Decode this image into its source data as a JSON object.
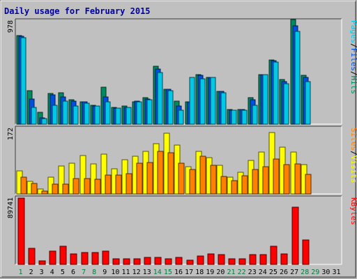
{
  "chart_data": {
    "type": "bar",
    "title": "Daily usage for February 2015",
    "categories": [
      "1",
      "2",
      "3",
      "4",
      "5",
      "6",
      "7",
      "8",
      "9",
      "10",
      "11",
      "12",
      "13",
      "14",
      "15",
      "16",
      "17",
      "18",
      "19",
      "20",
      "21",
      "22",
      "23",
      "24",
      "25",
      "26",
      "27",
      "28",
      "29",
      "30",
      "31"
    ],
    "weekend_days": [
      "1",
      "7",
      "8",
      "14",
      "15",
      "21",
      "22",
      "28",
      "29"
    ],
    "panels": [
      {
        "name": "hits-files-pages",
        "ymax_label": "978",
        "ymax": 978,
        "legend": [
          {
            "text": "Pages",
            "color": "#00c8e6"
          },
          {
            "text": "/",
            "color": "#000000"
          },
          {
            "text": "Files",
            "color": "#0050e0"
          },
          {
            "text": "/",
            "color": "#000000"
          },
          {
            "text": "Hits",
            "color": "#008a60"
          }
        ],
        "series": [
          {
            "name": "Hits",
            "color": "#008a60",
            "values": [
              840,
              320,
              110,
              290,
              300,
              230,
              210,
              180,
              350,
              160,
              170,
              210,
              250,
              550,
              330,
              220,
              210,
              470,
              440,
              310,
              140,
              140,
              250,
              470,
              610,
              420,
              990,
              460,
              0,
              0,
              0
            ]
          },
          {
            "name": "Files",
            "color": "#0050e0",
            "values": [
              830,
              240,
              60,
              280,
              260,
              220,
              210,
              170,
              260,
              150,
              160,
              220,
              240,
              520,
              330,
              170,
              210,
              460,
              440,
              310,
              130,
              140,
              230,
              470,
              600,
              400,
              930,
              440,
              0,
              0,
              0
            ]
          },
          {
            "name": "Pages",
            "color": "#00c8e6",
            "values": [
              820,
              160,
              50,
              180,
              220,
              170,
              200,
              170,
              210,
              150,
              160,
              210,
              230,
              490,
              320,
              130,
              440,
              430,
              440,
              300,
              130,
              130,
              180,
              470,
              590,
              380,
              880,
              400,
              0,
              0,
              0
            ]
          }
        ]
      },
      {
        "name": "visits-sites",
        "ymax_label": "172",
        "ymax": 172,
        "legend": [
          {
            "text": "Sites",
            "color": "#ff8000"
          },
          {
            "text": "/",
            "color": "#000000"
          },
          {
            "text": "Visits",
            "color": "#ffff00"
          }
        ],
        "series": [
          {
            "name": "Visits",
            "color": "#ffff00",
            "values": [
              60,
              32,
              12,
              44,
              72,
              80,
              100,
              77,
              104,
              66,
              88,
              98,
              111,
              130,
              158,
              126,
              70,
              110,
              95,
              74,
              44,
              56,
              86,
              108,
              160,
              122,
              108,
              76,
              0,
              0,
              0
            ]
          },
          {
            "name": "Sites",
            "color": "#ff8000",
            "values": [
              43,
              27,
              8,
              25,
              25,
              40,
              40,
              38,
              49,
              49,
              52,
              80,
              82,
              110,
              106,
              80,
              64,
              98,
              75,
              45,
              35,
              47,
              64,
              70,
              90,
              76,
              78,
              50,
              0,
              0,
              0
            ]
          }
        ]
      },
      {
        "name": "kbytes",
        "ymax_label": "89741",
        "ymax": 89741,
        "legend": [
          {
            "text": "KBytes",
            "color": "#ff0000"
          }
        ],
        "series": [
          {
            "name": "KBytes",
            "color": "#ff0000",
            "values": [
              89741,
              21500,
              4500,
              18000,
              24500,
              14500,
              16500,
              16500,
              18000,
              8000,
              8000,
              8000,
              9500,
              9000,
              8000,
              9500,
              5500,
              11000,
              14500,
              13500,
              8000,
              8000,
              13000,
              13000,
              25000,
              14000,
              77000,
              33000,
              0,
              0,
              0
            ]
          }
        ]
      }
    ]
  },
  "colors": {
    "background": "#c0c0c0",
    "title": "#0000aa",
    "weekday": "#000000",
    "weekend": "#008040"
  }
}
